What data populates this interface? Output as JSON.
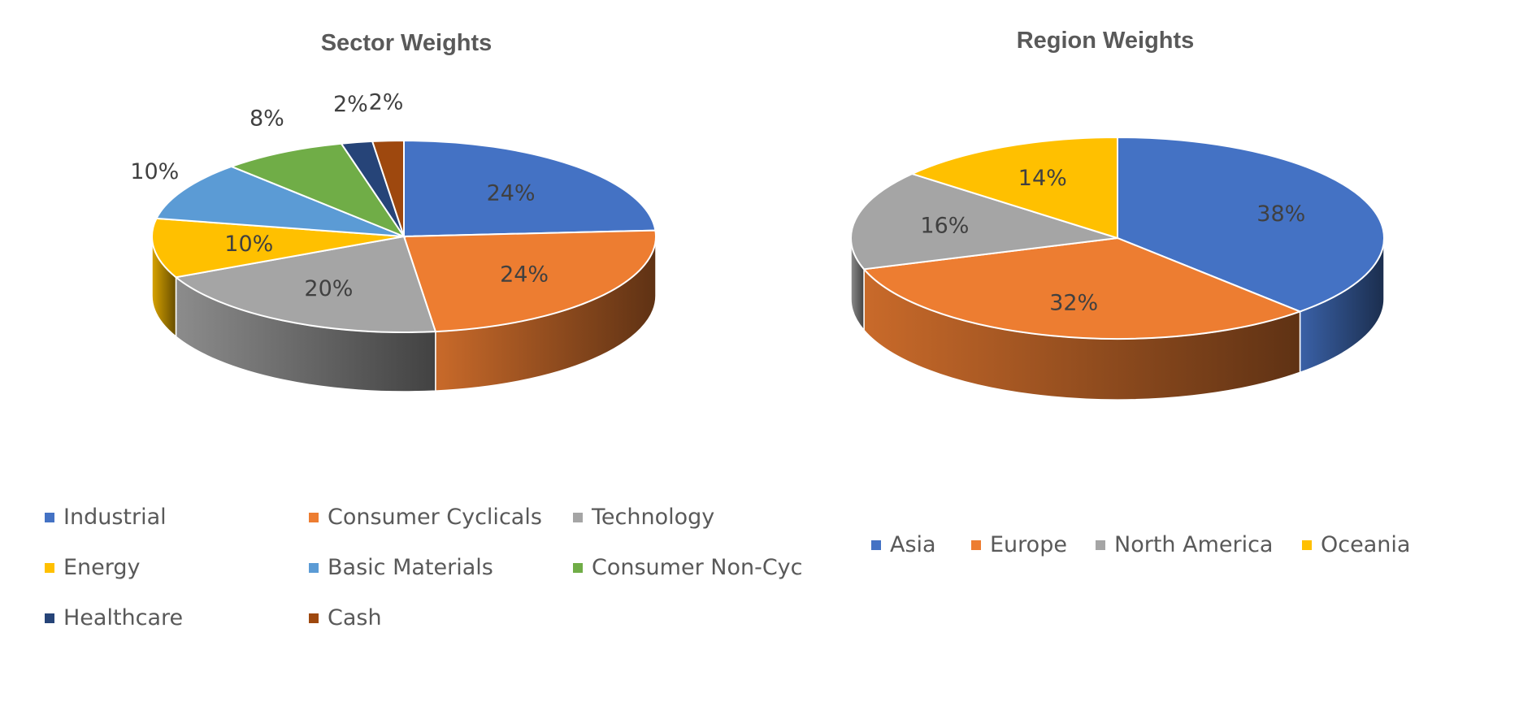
{
  "chart_data": [
    {
      "type": "pie",
      "title": "Sector Weights",
      "categories": [
        "Industrial",
        "Consumer Cyclicals",
        "Technology",
        "Energy",
        "Basic Materials",
        "Consumer Non-Cyc",
        "Healthcare",
        "Cash"
      ],
      "values": [
        24,
        24,
        20,
        10,
        10,
        8,
        2,
        2
      ],
      "labels": [
        "24%",
        "24%",
        "20%",
        "10%",
        "10%",
        "8%",
        "2%",
        "2%"
      ],
      "colors": [
        "#4472C4",
        "#ED7D31",
        "#A5A5A5",
        "#FFC000",
        "#5B9BD5",
        "#70AD47",
        "#264478",
        "#9E480E"
      ],
      "legend_position": "bottom",
      "style": "3d-pie"
    },
    {
      "type": "pie",
      "title": "Region Weights",
      "categories": [
        "Asia",
        "Europe",
        "North America",
        "Oceania"
      ],
      "values": [
        38,
        32,
        16,
        14
      ],
      "labels": [
        "38%",
        "32%",
        "16%",
        "14%"
      ],
      "colors": [
        "#4472C4",
        "#ED7D31",
        "#A5A5A5",
        "#FFC000"
      ],
      "legend_position": "bottom",
      "style": "3d-pie"
    }
  ]
}
